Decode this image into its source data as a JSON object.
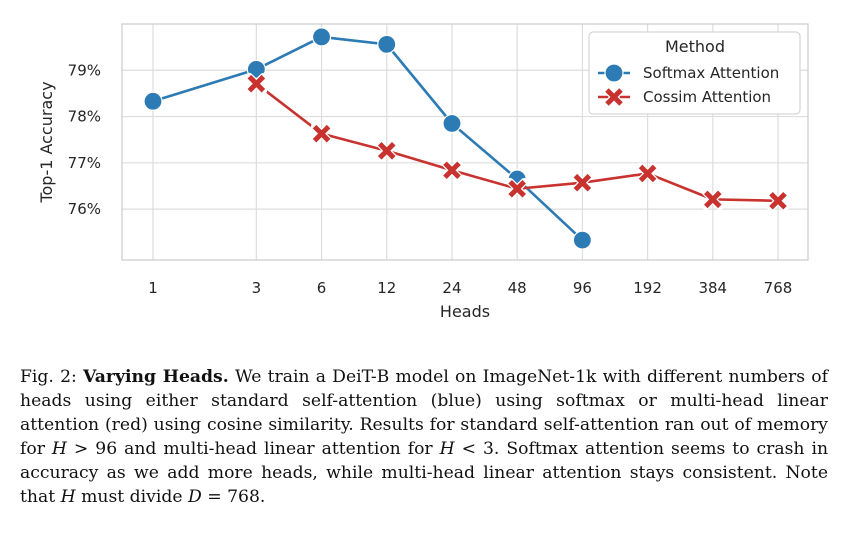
{
  "chart_data": {
    "type": "line",
    "categories": [
      "1",
      "3",
      "6",
      "12",
      "24",
      "48",
      "96",
      "192",
      "384",
      "768"
    ],
    "series": [
      {
        "name": "Softmax Attention",
        "color": "#2d7bb4",
        "marker": "circle",
        "values": [
          78.33,
          79.02,
          79.72,
          79.56,
          77.85,
          76.65,
          75.33,
          null,
          null,
          null
        ]
      },
      {
        "name": "Cossim Attention",
        "color": "#c8322f",
        "marker": "x",
        "values": [
          null,
          78.71,
          77.63,
          77.26,
          76.84,
          76.44,
          76.57,
          76.77,
          76.21,
          76.18
        ]
      }
    ],
    "xlabel": "Heads",
    "ylabel": "Top-1 Accuracy",
    "yticks": [
      "76%",
      "77%",
      "78%",
      "79%"
    ],
    "ytick_values": [
      76,
      77,
      78,
      79
    ],
    "ylim": [
      74.9,
      80.0
    ],
    "legend_title": "Method",
    "legend_placement": "top-right",
    "grid": true
  },
  "caption": {
    "label": "Fig. 2:",
    "bold": "Varying Heads.",
    "part1": "We train a DeiT-B model on ImageNet-1k with different numbers of heads using either standard self-attention (blue) using softmax or multi-head linear attention (red) using cosine similarity. Results for standard self-attention ran out of memory for",
    "h1": "H",
    "part2": "> 96 and multi-head linear attention for",
    "h2": "H",
    "part3": "< 3. Softmax attention seems to crash in accuracy as we add more heads, while multi-head linear attention stays consistent. Note that",
    "h3": "H",
    "part4": "must divide",
    "d": "D",
    "part5": "= 768."
  }
}
